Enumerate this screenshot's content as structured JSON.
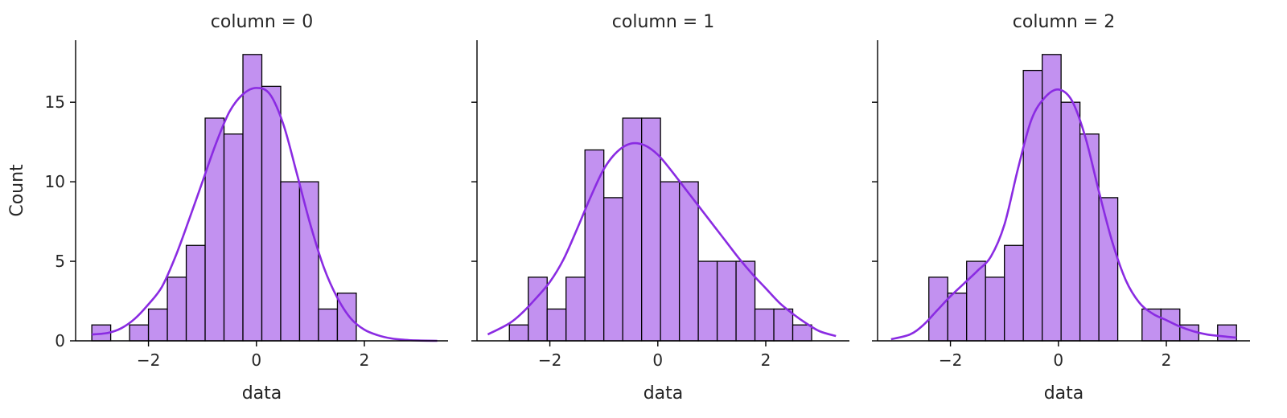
{
  "colors": {
    "bar_fill": "#c291f0",
    "bar_edge": "#000000",
    "kde_line": "#8a2be2"
  },
  "chart_data": [
    {
      "type": "bar",
      "title": "column = 0",
      "xlabel": "data",
      "ylabel": "Count",
      "xlim": [
        -3.35,
        3.55
      ],
      "ylim": [
        0,
        18.9
      ],
      "xticks": [
        -2,
        0,
        2
      ],
      "xtick_labels": [
        "−2",
        "0",
        "2"
      ],
      "yticks": [
        0,
        5,
        10,
        15
      ],
      "ytick_labels": [
        "0",
        "5",
        "10",
        "15"
      ],
      "bins": [
        {
          "x0": -3.05,
          "x1": -2.7,
          "count": 1
        },
        {
          "x0": -2.35,
          "x1": -2.0,
          "count": 1
        },
        {
          "x0": -2.0,
          "x1": -1.65,
          "count": 2
        },
        {
          "x0": -1.65,
          "x1": -1.3,
          "count": 4
        },
        {
          "x0": -1.3,
          "x1": -0.95,
          "count": 6
        },
        {
          "x0": -0.95,
          "x1": -0.6,
          "count": 14
        },
        {
          "x0": -0.6,
          "x1": -0.25,
          "count": 13
        },
        {
          "x0": -0.25,
          "x1": 0.1,
          "count": 18
        },
        {
          "x0": 0.1,
          "x1": 0.45,
          "count": 16
        },
        {
          "x0": 0.45,
          "x1": 0.8,
          "count": 10
        },
        {
          "x0": 0.8,
          "x1": 1.15,
          "count": 10
        },
        {
          "x0": 1.15,
          "x1": 1.5,
          "count": 2
        },
        {
          "x0": 1.5,
          "x1": 1.85,
          "count": 3
        }
      ],
      "kde": {
        "x": [
          -3.05,
          -2.75,
          -2.5,
          -2.25,
          -2.0,
          -1.75,
          -1.5,
          -1.25,
          -1.0,
          -0.75,
          -0.5,
          -0.25,
          0.0,
          0.25,
          0.5,
          0.75,
          1.0,
          1.25,
          1.5,
          1.75,
          2.0,
          2.25,
          2.5,
          2.75,
          3.0,
          3.35
        ],
        "y": [
          0.4,
          0.5,
          0.8,
          1.4,
          2.3,
          3.4,
          5.3,
          7.6,
          10.0,
          12.4,
          14.4,
          15.5,
          15.9,
          15.5,
          13.6,
          10.5,
          7.3,
          4.6,
          2.7,
          1.4,
          0.7,
          0.35,
          0.15,
          0.06,
          0.02,
          0.0
        ]
      }
    },
    {
      "type": "bar",
      "title": "column = 1",
      "xlabel": "data",
      "ylabel": "",
      "xlim": [
        -3.35,
        3.55
      ],
      "ylim": [
        0,
        18.9
      ],
      "xticks": [
        -2,
        0,
        2
      ],
      "xtick_labels": [
        "−2",
        "0",
        "2"
      ],
      "yticks": [
        0,
        5,
        10,
        15
      ],
      "ytick_labels": [
        "",
        "",
        "",
        ""
      ],
      "bins": [
        {
          "x0": -2.75,
          "x1": -2.4,
          "count": 1
        },
        {
          "x0": -2.4,
          "x1": -2.05,
          "count": 4
        },
        {
          "x0": -2.05,
          "x1": -1.7,
          "count": 2
        },
        {
          "x0": -1.7,
          "x1": -1.35,
          "count": 4
        },
        {
          "x0": -1.35,
          "x1": -1.0,
          "count": 12
        },
        {
          "x0": -1.0,
          "x1": -0.65,
          "count": 9
        },
        {
          "x0": -0.65,
          "x1": -0.3,
          "count": 14
        },
        {
          "x0": -0.3,
          "x1": 0.05,
          "count": 14
        },
        {
          "x0": 0.05,
          "x1": 0.4,
          "count": 10
        },
        {
          "x0": 0.4,
          "x1": 0.75,
          "count": 10
        },
        {
          "x0": 0.75,
          "x1": 1.1,
          "count": 5
        },
        {
          "x0": 1.1,
          "x1": 1.45,
          "count": 5
        },
        {
          "x0": 1.45,
          "x1": 1.8,
          "count": 5
        },
        {
          "x0": 1.8,
          "x1": 2.15,
          "count": 2
        },
        {
          "x0": 2.15,
          "x1": 2.5,
          "count": 2
        },
        {
          "x0": 2.5,
          "x1": 2.85,
          "count": 1
        }
      ],
      "kde": {
        "x": [
          -3.15,
          -2.75,
          -2.5,
          -2.25,
          -2.0,
          -1.75,
          -1.5,
          -1.25,
          -1.0,
          -0.75,
          -0.5,
          -0.25,
          0.0,
          0.25,
          0.5,
          0.75,
          1.0,
          1.25,
          1.5,
          1.75,
          2.0,
          2.25,
          2.5,
          2.75,
          3.0,
          3.3
        ],
        "y": [
          0.4,
          1.1,
          1.8,
          2.7,
          3.7,
          5.1,
          7.0,
          9.0,
          10.8,
          11.9,
          12.4,
          12.3,
          11.7,
          10.7,
          9.6,
          8.5,
          7.4,
          6.3,
          5.2,
          4.2,
          3.3,
          2.4,
          1.7,
          1.1,
          0.6,
          0.3
        ]
      }
    },
    {
      "type": "bar",
      "title": "column = 2",
      "xlabel": "data",
      "ylabel": "",
      "xlim": [
        -3.35,
        3.55
      ],
      "ylim": [
        0,
        18.9
      ],
      "xticks": [
        -2,
        0,
        2
      ],
      "xtick_labels": [
        "−2",
        "0",
        "2"
      ],
      "yticks": [
        0,
        5,
        10,
        15
      ],
      "ytick_labels": [
        "",
        "",
        "",
        ""
      ],
      "bins": [
        {
          "x0": -2.4,
          "x1": -2.05,
          "count": 4
        },
        {
          "x0": -2.05,
          "x1": -1.7,
          "count": 3
        },
        {
          "x0": -1.7,
          "x1": -1.35,
          "count": 5
        },
        {
          "x0": -1.35,
          "x1": -1.0,
          "count": 4
        },
        {
          "x0": -1.0,
          "x1": -0.65,
          "count": 6
        },
        {
          "x0": -0.65,
          "x1": -0.3,
          "count": 17
        },
        {
          "x0": -0.3,
          "x1": 0.05,
          "count": 18
        },
        {
          "x0": 0.05,
          "x1": 0.4,
          "count": 15
        },
        {
          "x0": 0.4,
          "x1": 0.75,
          "count": 13
        },
        {
          "x0": 0.75,
          "x1": 1.1,
          "count": 9
        },
        {
          "x0": 1.55,
          "x1": 1.9,
          "count": 2
        },
        {
          "x0": 1.9,
          "x1": 2.25,
          "count": 2
        },
        {
          "x0": 2.25,
          "x1": 2.6,
          "count": 1
        },
        {
          "x0": 2.95,
          "x1": 3.3,
          "count": 1
        }
      ],
      "kde": {
        "x": [
          -3.1,
          -2.75,
          -2.5,
          -2.25,
          -2.0,
          -1.75,
          -1.5,
          -1.25,
          -1.0,
          -0.75,
          -0.5,
          -0.25,
          0.0,
          0.25,
          0.5,
          0.75,
          1.0,
          1.25,
          1.5,
          1.75,
          2.0,
          2.25,
          2.5,
          2.75,
          3.0,
          3.3
        ],
        "y": [
          0.1,
          0.4,
          1.0,
          1.9,
          2.8,
          3.6,
          4.4,
          5.3,
          7.3,
          10.8,
          13.9,
          15.3,
          15.8,
          15.1,
          12.8,
          9.4,
          6.2,
          3.8,
          2.4,
          1.7,
          1.3,
          0.9,
          0.6,
          0.4,
          0.3,
          0.2
        ]
      }
    }
  ]
}
